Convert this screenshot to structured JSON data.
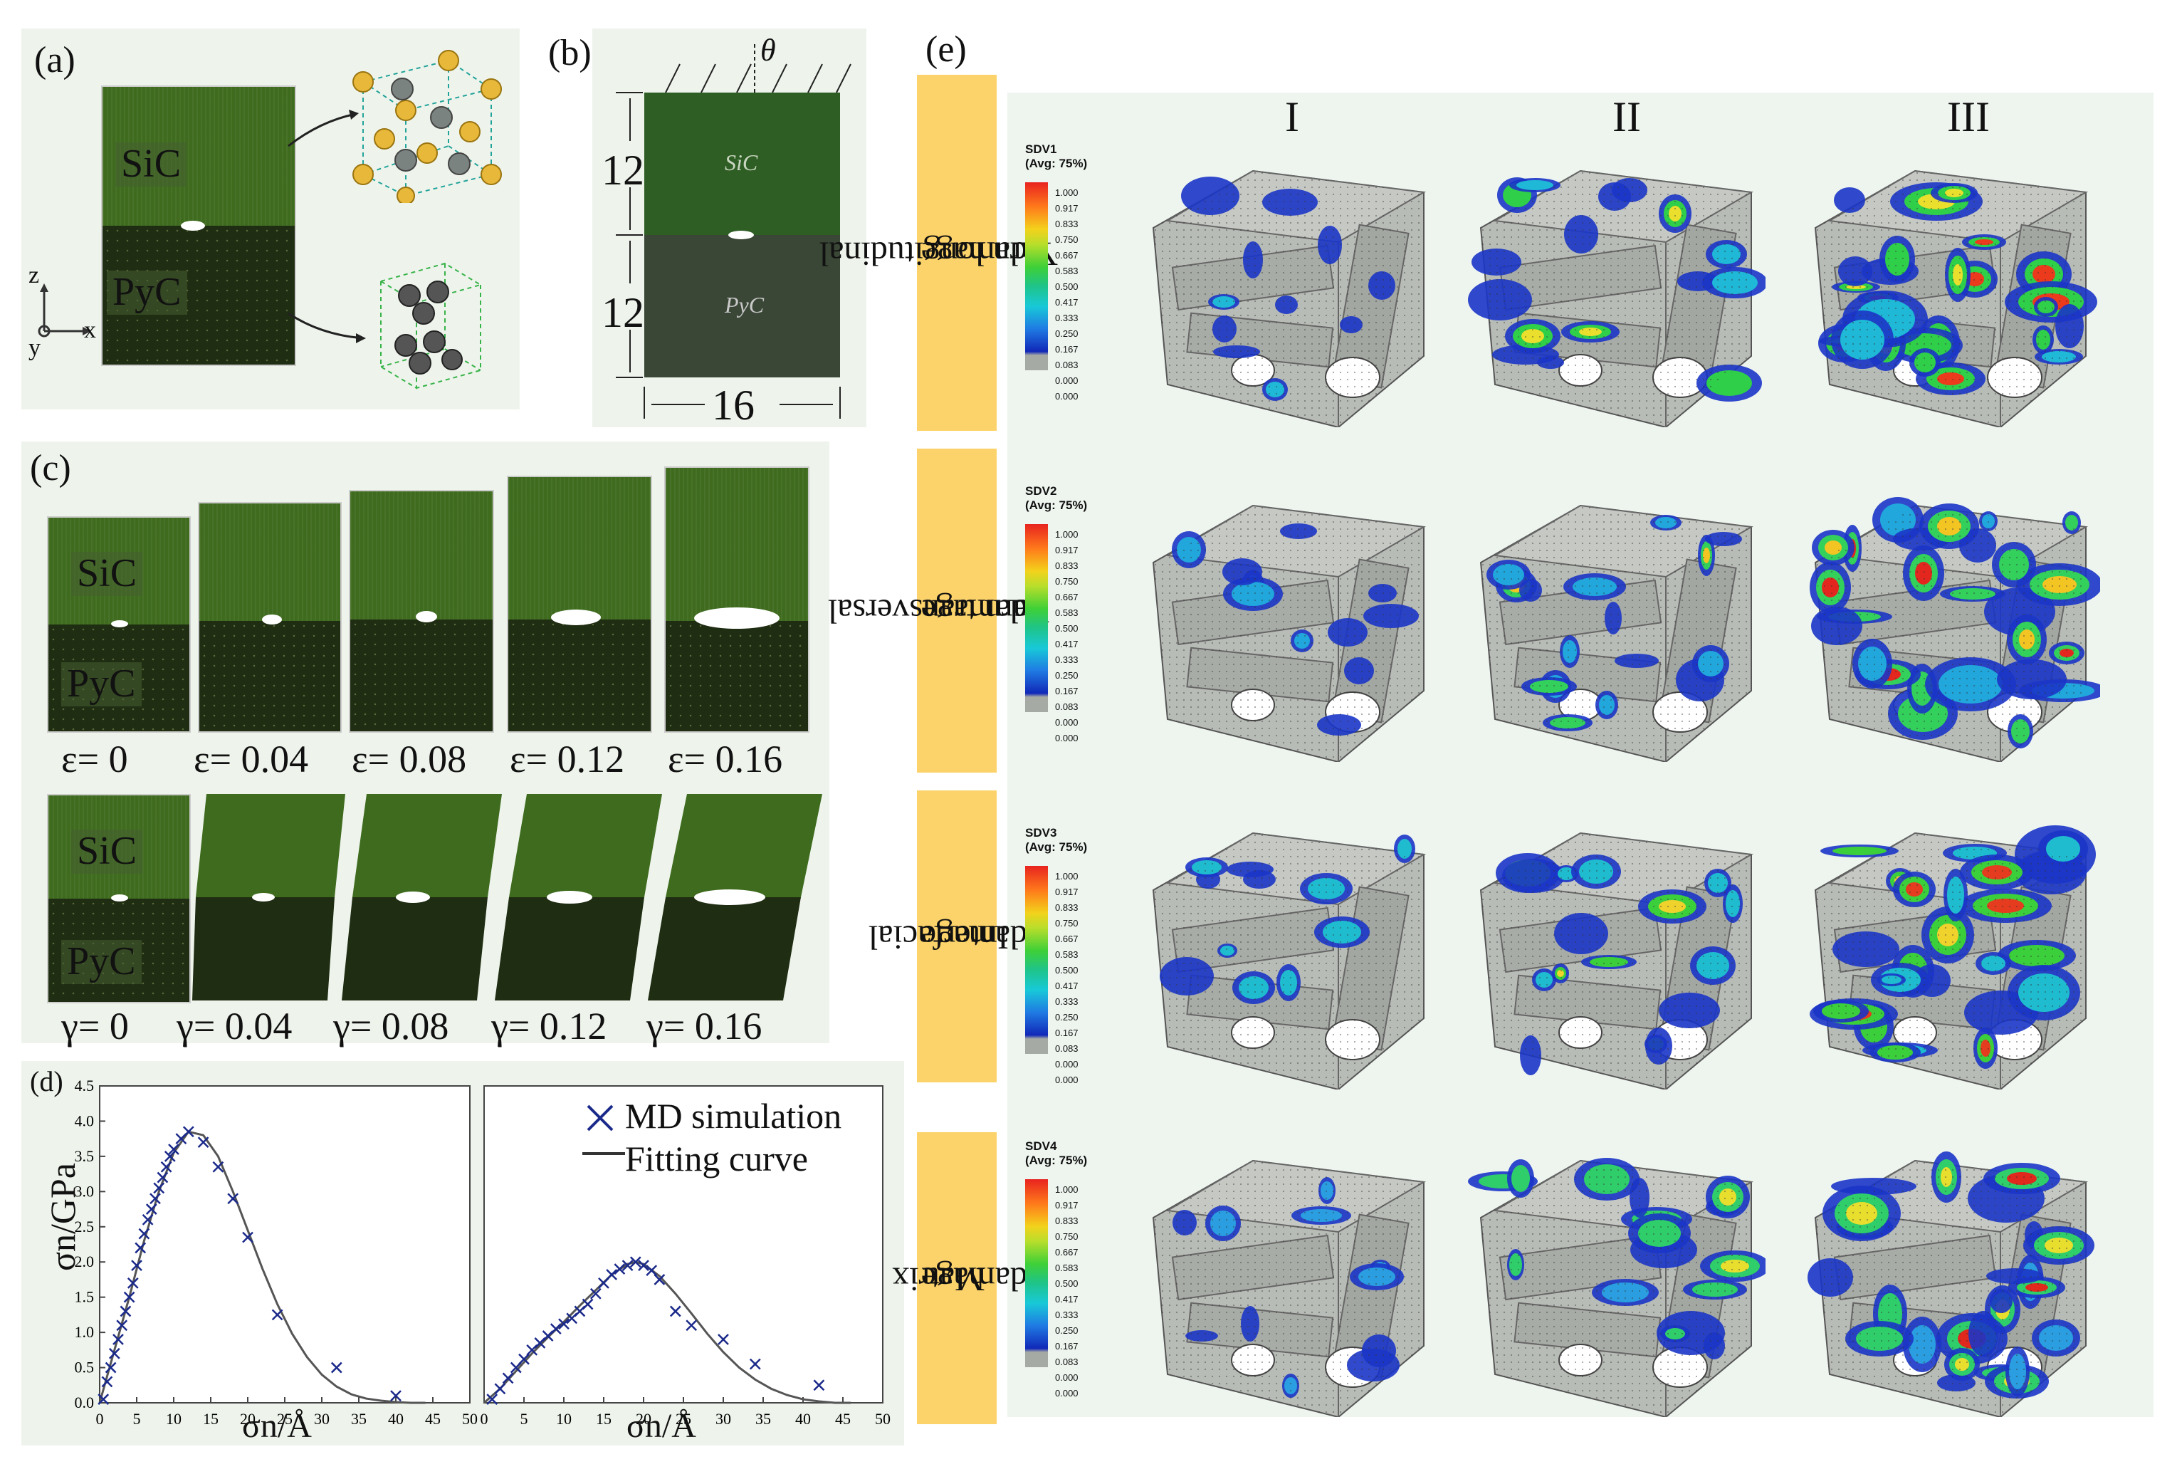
{
  "panels": {
    "a": {
      "label": "(a)",
      "top_material": "SiC",
      "bottom_material": "PyC",
      "axis_z": "z",
      "axis_x": "x",
      "axis_y": "y"
    },
    "b": {
      "label": "(b)",
      "angle": "θ",
      "top_material": "SiC",
      "bottom_material": "PyC",
      "dim_top": "12",
      "dim_bottom": "12",
      "dim_width": "16"
    },
    "c": {
      "label": "(c)",
      "top_material": "SiC",
      "bottom_material": "PyC",
      "tension_labels": [
        "ε= 0",
        "ε= 0.04",
        "ε= 0.08",
        "ε= 0.12",
        "ε= 0.16"
      ],
      "shear_labels": [
        "γ= 0",
        "γ= 0.04",
        "γ= 0.08",
        "γ= 0.12",
        "γ= 0.16"
      ]
    },
    "d": {
      "label": "(d)",
      "legend_sim": "MD simulation",
      "legend_fit": "Fitting curve"
    },
    "e": {
      "label": "(e)",
      "columns": [
        "I",
        "II",
        "III"
      ],
      "rows": [
        {
          "title_line1": "Yarn longitudinal",
          "title_line2": "damage",
          "legend_var": "SDV1",
          "legend_avg": "(Avg: 75%)"
        },
        {
          "title_line1": "Yarn transversal",
          "title_line2": "damage",
          "legend_var": "SDV2",
          "legend_avg": "(Avg: 75%)"
        },
        {
          "title_line1": "Interfacial",
          "title_line2": "damage",
          "legend_var": "SDV3",
          "legend_avg": "(Avg: 75%)"
        },
        {
          "title_line1": "Matrix",
          "title_line2": "damage",
          "legend_var": "SDV4",
          "legend_avg": "(Avg: 75%)"
        }
      ],
      "legend_ticks": [
        "1.000",
        "0.917",
        "0.833",
        "0.750",
        "0.667",
        "0.583",
        "0.500",
        "0.417",
        "0.333",
        "0.250",
        "0.167",
        "0.083",
        "0.000",
        "0.000"
      ]
    }
  },
  "chart_data": [
    {
      "type": "scatter",
      "ylabel": "σn/GPa",
      "xlabel": "σn/Å",
      "xlim": [
        0,
        50
      ],
      "ylim": [
        0,
        4.5
      ],
      "xticks": [
        0,
        5,
        10,
        15,
        20,
        25,
        30,
        35,
        40,
        45,
        50
      ],
      "yticks": [
        0.0,
        0.5,
        1.0,
        1.5,
        2.0,
        2.5,
        3.0,
        3.5,
        4.0,
        4.5
      ],
      "series": [
        {
          "name": "MD simulation",
          "x": [
            0.5,
            1,
            1.5,
            2,
            2.5,
            3,
            3.5,
            4,
            4.5,
            5,
            5.5,
            6,
            6.5,
            7,
            7.5,
            8,
            8.5,
            9,
            9.5,
            10,
            11,
            12,
            14,
            16,
            18,
            20,
            24,
            32,
            40
          ],
          "y": [
            0.05,
            0.3,
            0.5,
            0.7,
            0.9,
            1.1,
            1.3,
            1.5,
            1.7,
            1.95,
            2.2,
            2.4,
            2.6,
            2.75,
            2.9,
            3.05,
            3.2,
            3.35,
            3.5,
            3.6,
            3.75,
            3.85,
            3.7,
            3.35,
            2.9,
            2.35,
            1.25,
            0.5,
            0.1
          ]
        },
        {
          "name": "Fitting curve",
          "x": [
            0,
            2,
            4,
            6,
            8,
            10,
            12,
            14,
            16,
            18,
            20,
            22,
            24,
            26,
            28,
            30,
            32,
            34,
            36,
            38,
            40,
            42,
            44
          ],
          "y": [
            0,
            0.75,
            1.5,
            2.3,
            3.0,
            3.55,
            3.85,
            3.8,
            3.5,
            3.0,
            2.45,
            1.9,
            1.4,
            0.98,
            0.65,
            0.4,
            0.23,
            0.12,
            0.06,
            0.03,
            0.01,
            0.0,
            0.0
          ]
        }
      ]
    },
    {
      "type": "scatter",
      "xlabel": "σn/Å",
      "xlim": [
        0,
        50
      ],
      "ylim": [
        0,
        4.5
      ],
      "xticks": [
        0,
        5,
        10,
        15,
        20,
        25,
        30,
        35,
        40,
        45,
        50
      ],
      "series": [
        {
          "name": "MD simulation",
          "x": [
            1,
            2,
            3,
            4,
            5,
            6,
            7,
            8,
            9,
            10,
            11,
            12,
            13,
            14,
            15,
            16,
            17,
            18,
            19,
            20,
            21,
            22,
            24,
            26,
            30,
            34,
            42
          ],
          "y": [
            0.05,
            0.2,
            0.35,
            0.5,
            0.62,
            0.75,
            0.85,
            0.95,
            1.05,
            1.12,
            1.2,
            1.3,
            1.4,
            1.55,
            1.7,
            1.82,
            1.9,
            1.95,
            2.0,
            1.95,
            1.88,
            1.75,
            1.3,
            1.1,
            0.9,
            0.55,
            0.25
          ]
        },
        {
          "name": "Fitting curve",
          "x": [
            0,
            2,
            4,
            6,
            8,
            10,
            12,
            14,
            16,
            18,
            19,
            20,
            22,
            24,
            26,
            28,
            30,
            32,
            34,
            36,
            38,
            40,
            42,
            44,
            46
          ],
          "y": [
            0,
            0.2,
            0.45,
            0.7,
            0.93,
            1.15,
            1.38,
            1.6,
            1.82,
            1.97,
            2.0,
            1.97,
            1.8,
            1.55,
            1.27,
            0.98,
            0.72,
            0.5,
            0.33,
            0.2,
            0.11,
            0.05,
            0.02,
            0.0,
            0.0
          ]
        }
      ]
    }
  ]
}
